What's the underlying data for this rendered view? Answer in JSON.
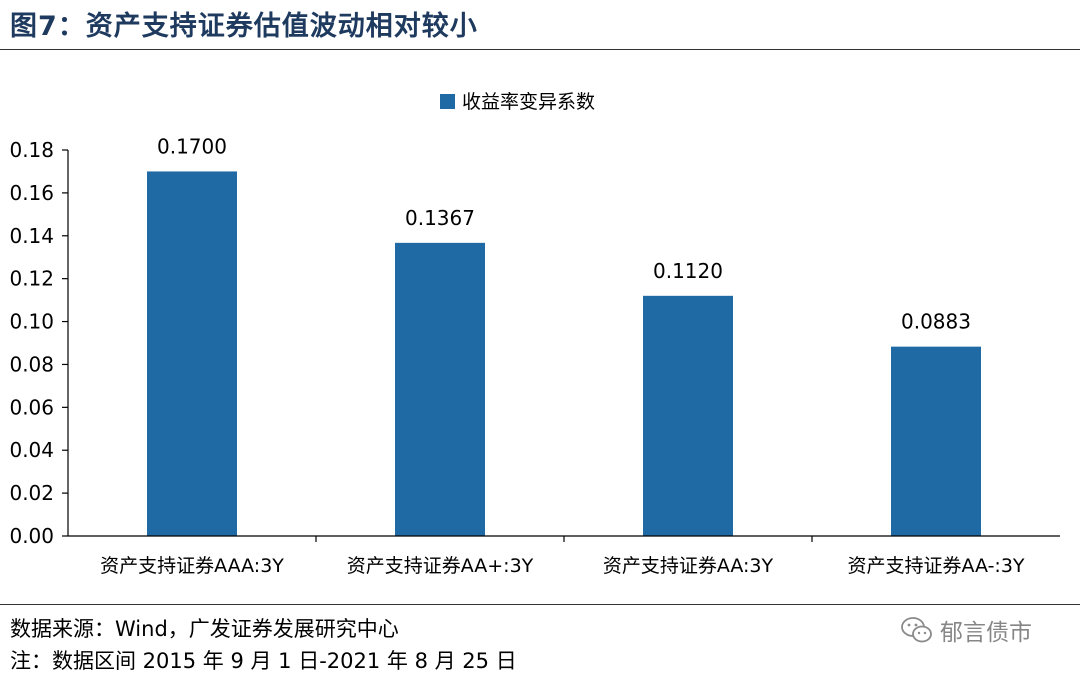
{
  "figure": {
    "title": "图7：资产支持证券估值波动相对较小",
    "source": "数据来源：Wind，广发证券发展研究中心",
    "note": "注：数据区间 2015 年 9 月 1 日-2021 年 8 月 25 日",
    "watermark": "郁言债市"
  },
  "chart_data": {
    "type": "bar",
    "categories": [
      "资产支持证券AAA:3Y",
      "资产支持证券AA+:3Y",
      "资产支持证券AA:3Y",
      "资产支持证券AA-:3Y"
    ],
    "series": [
      {
        "name": "收益率变异系数",
        "values": [
          0.17,
          0.1367,
          0.112,
          0.0883
        ],
        "labels": [
          "0.1700",
          "0.1367",
          "0.1120",
          "0.0883"
        ]
      }
    ],
    "yticks": [
      "0.00",
      "0.02",
      "0.04",
      "0.06",
      "0.08",
      "0.10",
      "0.12",
      "0.14",
      "0.16",
      "0.18"
    ],
    "ylim": [
      0,
      0.18
    ],
    "legend": "top-center",
    "grid": false,
    "bar_color": "#1f6aa5",
    "title": "",
    "xlabel": "",
    "ylabel": ""
  }
}
